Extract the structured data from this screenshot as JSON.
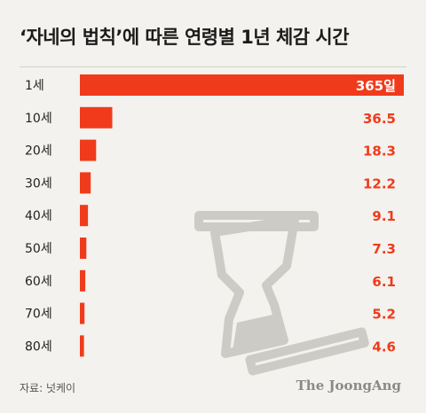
{
  "title": "‘자네의 법칙’에 따른 연령별 1년 체감 시간",
  "source": "자료: 넛케이",
  "brand": "The JoongAng",
  "colors": {
    "bar": "#ef3b1c",
    "label_on_bar": "#ffffff",
    "value_text": "#ef3b1c",
    "icon": "#cdcbc6"
  },
  "icon": "hourglass-icon",
  "chart_data": {
    "type": "bar",
    "orientation": "horizontal",
    "categories": [
      "1세",
      "10세",
      "20세",
      "30세",
      "40세",
      "50세",
      "60세",
      "70세",
      "80세"
    ],
    "values": [
      365,
      36.5,
      18.3,
      12.2,
      9.1,
      7.3,
      6.1,
      5.2,
      4.6
    ],
    "value_labels": [
      "365일",
      "36.5",
      "18.3",
      "12.2",
      "9.1",
      "7.3",
      "6.1",
      "5.2",
      "4.6"
    ],
    "xlim": [
      0,
      365
    ],
    "grid": false,
    "legend": "none"
  }
}
